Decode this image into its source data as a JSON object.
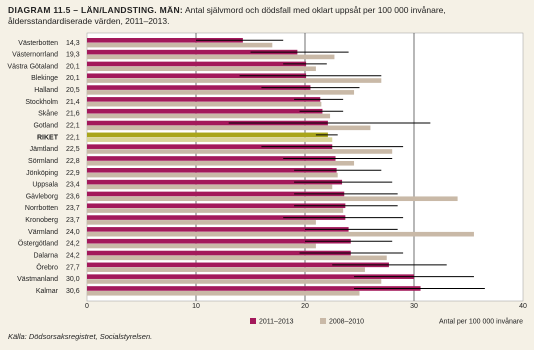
{
  "chart_data": {
    "type": "hbar",
    "title": "DIAGRAM 11.5 – LÄN/LANDSTING. MÄN:",
    "subtitle": "Antal självmord och dödsfall med oklart uppsåt per 100 000 invånare, åldersstandardiserade värden, 2011–2013.",
    "x_label": "Antal per 100 000 invånare",
    "source": "Källa: Dödsorsaksregistret, Socialstyrelsen.",
    "categories": [
      "Västerbotten",
      "Västernorrland",
      "Västra Götaland",
      "Blekinge",
      "Halland",
      "Stockholm",
      "Skåne",
      "Gotland",
      "RIKET",
      "Jämtland",
      "Sörmland",
      "Jönköping",
      "Uppsala",
      "Gävleborg",
      "Norrbotten",
      "Kronoberg",
      "Värmland",
      "Östergötland",
      "Dalarna",
      "Örebro",
      "Västmanland",
      "Kalmar"
    ],
    "series": [
      {
        "name": "2011–2013",
        "color": "#a3195b",
        "bar_colors": [
          "#a3195b",
          "#a3195b",
          "#a3195b",
          "#a3195b",
          "#a3195b",
          "#a3195b",
          "#a3195b",
          "#a3195b",
          "#a9a51c",
          "#a3195b",
          "#a3195b",
          "#a3195b",
          "#a3195b",
          "#a3195b",
          "#a3195b",
          "#a3195b",
          "#a3195b",
          "#a3195b",
          "#a3195b",
          "#a3195b",
          "#a3195b",
          "#a3195b"
        ],
        "values": [
          14.3,
          19.3,
          20.1,
          20.1,
          20.5,
          21.4,
          21.6,
          22.1,
          22.1,
          22.5,
          22.8,
          22.9,
          23.4,
          23.6,
          23.7,
          23.7,
          24.0,
          24.2,
          24.2,
          27.7,
          30.0,
          30.6
        ],
        "value_labels": [
          "14,3",
          "19,3",
          "20,1",
          "20,1",
          "20,5",
          "21,4",
          "21,6",
          "22,1",
          "22,1",
          "22,5",
          "22,8",
          "22,9",
          "23,4",
          "23,6",
          "23,7",
          "23,7",
          "24,0",
          "24,2",
          "24,2",
          "27,7",
          "30,0",
          "30,6"
        ],
        "error_low": [
          10,
          15,
          18,
          14,
          16,
          19,
          19.5,
          13,
          21,
          16,
          18,
          19,
          19,
          19,
          19,
          18,
          20,
          20,
          19.5,
          22.5,
          24.5,
          24.5
        ],
        "error_high": [
          18,
          24,
          22,
          27,
          25,
          23.5,
          23.5,
          31.5,
          23,
          29,
          28,
          27,
          28,
          28.5,
          28.5,
          29,
          28.5,
          28,
          29,
          33,
          35.5,
          36.5
        ]
      },
      {
        "name": "2008–2010",
        "color": "#c9b9a7",
        "bar_colors": [
          "#c9b9a7",
          "#c9b9a7",
          "#c9b9a7",
          "#c9b9a7",
          "#c9b9a7",
          "#c9b9a7",
          "#c9b9a7",
          "#c9b9a7",
          "#d9d59b",
          "#c9b9a7",
          "#c9b9a7",
          "#c9b9a7",
          "#c9b9a7",
          "#c9b9a7",
          "#c9b9a7",
          "#c9b9a7",
          "#c9b9a7",
          "#c9b9a7",
          "#c9b9a7",
          "#c9b9a7",
          "#c9b9a7",
          "#c9b9a7"
        ],
        "values": [
          17,
          22.7,
          21,
          27,
          24.5,
          21.5,
          22.3,
          26,
          22.5,
          28,
          24.5,
          23,
          22.5,
          34,
          23.5,
          21,
          35.5,
          21,
          27.5,
          25.5,
          27,
          25
        ]
      }
    ],
    "xlim": [
      0,
      40
    ],
    "xticks": [
      0,
      10,
      20,
      30,
      40
    ],
    "grid": true
  }
}
